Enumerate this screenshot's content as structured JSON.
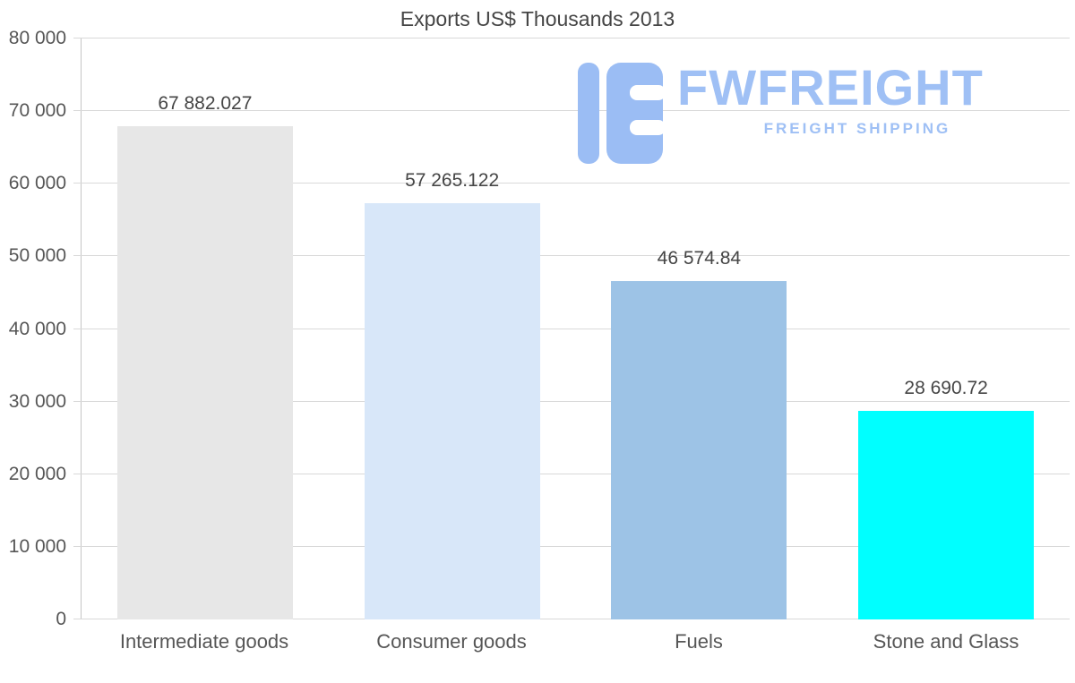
{
  "chart_data": {
    "type": "bar",
    "title": "Exports US$ Thousands 2013",
    "categories": [
      "Intermediate goods",
      "Consumer goods",
      "Fuels",
      "Stone and Glass"
    ],
    "values": [
      67882.027,
      57265.122,
      46574.84,
      28690.72
    ],
    "value_labels": [
      "67 882.027",
      "57 265.122",
      "46 574.84",
      "28 690.72"
    ],
    "bar_colors": [
      "#e7e7e7",
      "#d8e7f9",
      "#9dc3e6",
      "#00ffff"
    ],
    "xlabel": "",
    "ylabel": "",
    "ylim": [
      0,
      80000
    ],
    "ytick_step": 10000,
    "ytick_labels": [
      "0",
      "10 000",
      "20 000",
      "30 000",
      "40 000",
      "50 000",
      "60 000",
      "70 000",
      "80 000"
    ],
    "grid": true,
    "legend": false,
    "gridline_color": "#d9d9d9"
  },
  "logo": {
    "name": "FWFREIGHT",
    "tagline": "FREIGHT SHIPPING",
    "color": "#9fc0f5"
  }
}
